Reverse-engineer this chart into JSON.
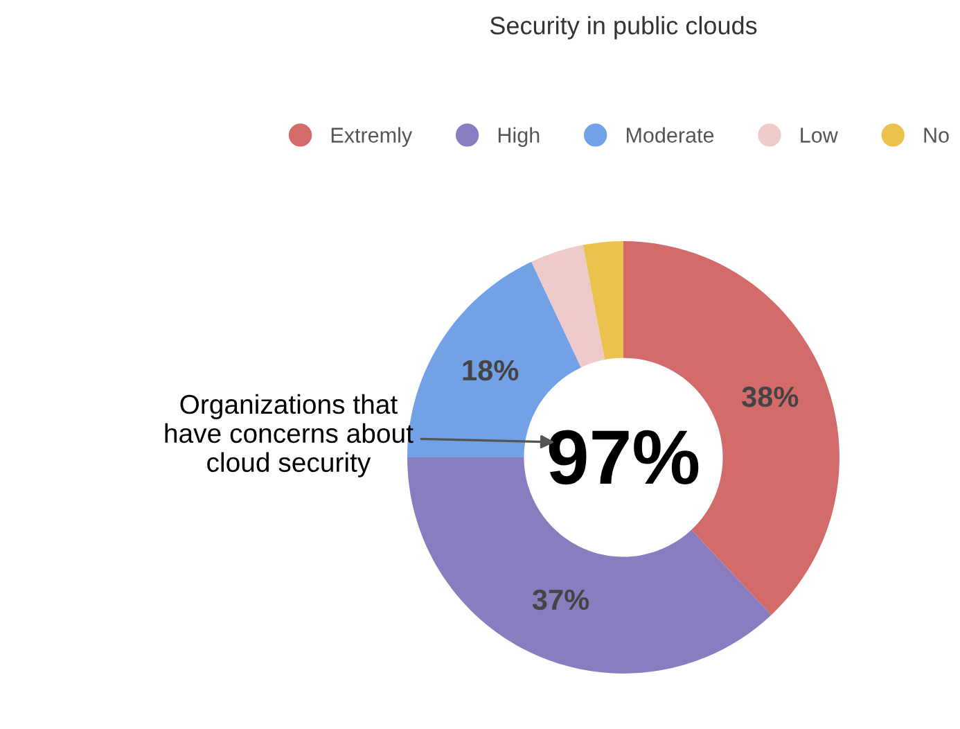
{
  "chart_data": {
    "type": "donut",
    "title": "Security in public clouds",
    "categories": [
      "Extremly",
      "High",
      "Moderate",
      "Low",
      "No"
    ],
    "values": [
      38,
      37,
      18,
      4,
      3
    ],
    "colors": [
      "#d36b6a",
      "#8a7dbf",
      "#73a1e6",
      "#efcaca",
      "#e9c34e"
    ],
    "value_labels": [
      "38%",
      "37%",
      "18%",
      null,
      null
    ],
    "annotations": [
      "97%",
      "Organizations that\nhave concerns about\ncloud security"
    ],
    "legend": "top"
  }
}
